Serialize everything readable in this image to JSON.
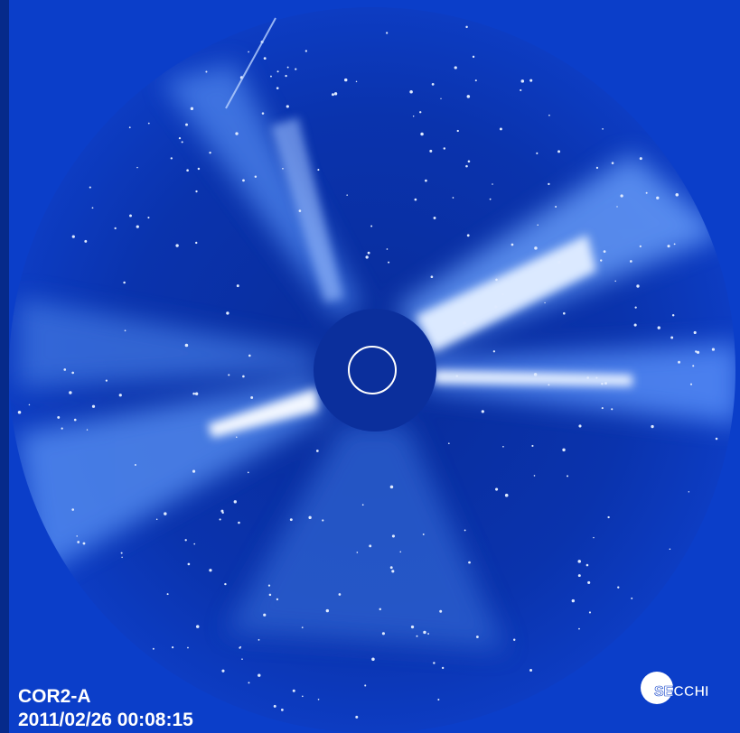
{
  "image": {
    "instrument": "COR2-A",
    "timestamp": "2011/02/26 00:08:15",
    "logo": "SECCHI"
  }
}
